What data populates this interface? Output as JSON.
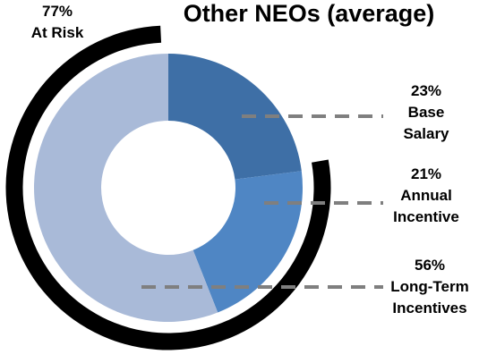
{
  "chart_data": {
    "type": "pie",
    "title": "Other NEOs (average)",
    "slices": [
      {
        "name": "Base Salary",
        "value": 23,
        "label_lines": [
          "23%",
          "Base",
          "Salary"
        ],
        "color": "#3e6fa6"
      },
      {
        "name": "Annual Incentive",
        "value": 21,
        "label_lines": [
          "21%",
          "Annual",
          "Incentive"
        ],
        "color": "#4f86c4"
      },
      {
        "name": "Long-Term Incentives",
        "value": 56,
        "label_lines": [
          "56%",
          "Long-Term",
          "Incentives"
        ],
        "color": "#a9bad8"
      }
    ],
    "at_risk": {
      "value": 77,
      "label_lines": [
        "77%",
        "At Risk"
      ],
      "color": "#000000"
    },
    "leader_line_color": "#7f7f7f",
    "background_color": "#ffffff"
  }
}
